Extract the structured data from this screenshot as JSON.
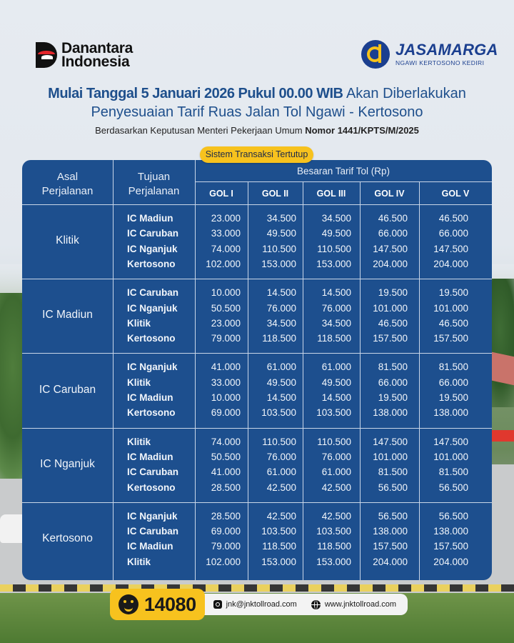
{
  "header": {
    "left_logo": {
      "line1": "Danantara",
      "line2": "Indonesia"
    },
    "right_logo": {
      "name": "JASAMARGA",
      "subtitle": "NGAWI KERTOSONO KEDIRI"
    }
  },
  "headline": {
    "bold": "Mulai Tanggal 5 Januari 2026 Pukul 00.00 WIB",
    "regular": " Akan Diberlakukan",
    "line2": "Penyesuaian Tarif Ruas Jalan Tol Ngawi - Kertosono"
  },
  "subline": {
    "regular": "Berdasarkan Keputusan Menteri Pekerjaan Umum ",
    "bold": "Nomor 1441/KPTS/M/2025"
  },
  "badge": "Sistem Transaksi Tertutup",
  "table": {
    "col_origin": [
      "Asal",
      "Perjalanan"
    ],
    "col_dest": [
      "Tujuan",
      "Perjalanan"
    ],
    "tariff_header": "Besaran Tarif Tol (Rp)",
    "classes": [
      "GOL I",
      "GOL II",
      "GOL III",
      "GOL IV",
      "GOL V"
    ],
    "groups": [
      {
        "origin": "Klitik",
        "rows": [
          {
            "dest": "IC Madiun",
            "values": [
              "23.000",
              "34.500",
              "34.500",
              "46.500",
              "46.500"
            ]
          },
          {
            "dest": "IC Caruban",
            "values": [
              "33.000",
              "49.500",
              "49.500",
              "66.000",
              "66.000"
            ]
          },
          {
            "dest": "IC Nganjuk",
            "values": [
              "74.000",
              "110.500",
              "110.500",
              "147.500",
              "147.500"
            ]
          },
          {
            "dest": "Kertosono",
            "values": [
              "102.000",
              "153.000",
              "153.000",
              "204.000",
              "204.000"
            ]
          }
        ]
      },
      {
        "origin": "IC Madiun",
        "rows": [
          {
            "dest": "IC Caruban",
            "values": [
              "10.000",
              "14.500",
              "14.500",
              "19.500",
              "19.500"
            ]
          },
          {
            "dest": "IC Nganjuk",
            "values": [
              "50.500",
              "76.000",
              "76.000",
              "101.000",
              "101.000"
            ]
          },
          {
            "dest": "Klitik",
            "values": [
              "23.000",
              "34.500",
              "34.500",
              "46.500",
              "46.500"
            ]
          },
          {
            "dest": "Kertosono",
            "values": [
              "79.000",
              "118.500",
              "118.500",
              "157.500",
              "157.500"
            ]
          }
        ]
      },
      {
        "origin": "IC Caruban",
        "rows": [
          {
            "dest": "IC Nganjuk",
            "values": [
              "41.000",
              "61.000",
              "61.000",
              "81.500",
              "81.500"
            ]
          },
          {
            "dest": "Klitik",
            "values": [
              "33.000",
              "49.500",
              "49.500",
              "66.000",
              "66.000"
            ]
          },
          {
            "dest": "IC Madiun",
            "values": [
              "10.000",
              "14.500",
              "14.500",
              "19.500",
              "19.500"
            ]
          },
          {
            "dest": "Kertosono",
            "values": [
              "69.000",
              "103.500",
              "103.500",
              "138.000",
              "138.000"
            ]
          }
        ]
      },
      {
        "origin": "IC Nganjuk",
        "rows": [
          {
            "dest": "Klitik",
            "values": [
              "74.000",
              "110.500",
              "110.500",
              "147.500",
              "147.500"
            ]
          },
          {
            "dest": "IC Madiun",
            "values": [
              "50.500",
              "76.000",
              "76.000",
              "101.000",
              "101.000"
            ]
          },
          {
            "dest": "IC Caruban",
            "values": [
              "41.000",
              "61.000",
              "61.000",
              "81.500",
              "81.500"
            ]
          },
          {
            "dest": "Kertosono",
            "values": [
              "28.500",
              "42.500",
              "42.500",
              "56.500",
              "56.500"
            ]
          }
        ]
      },
      {
        "origin": "Kertosono",
        "rows": [
          {
            "dest": "IC Nganjuk",
            "values": [
              "28.500",
              "42.500",
              "42.500",
              "56.500",
              "56.500"
            ]
          },
          {
            "dest": "IC Caruban",
            "values": [
              "69.000",
              "103.500",
              "103.500",
              "138.000",
              "138.000"
            ]
          },
          {
            "dest": "IC Madiun",
            "values": [
              "79.000",
              "118.500",
              "118.500",
              "157.500",
              "157.500"
            ]
          },
          {
            "dest": "Klitik",
            "values": [
              "102.000",
              "153.000",
              "153.000",
              "204.000",
              "204.000"
            ]
          }
        ]
      }
    ]
  },
  "footer": {
    "hotline_icon": "headset-icon",
    "hotline": "14080",
    "email_icon": "instagram-icon",
    "email": "jnk@jnktollroad.com",
    "web_icon": "globe-icon",
    "website": "www.jnktollroad.com"
  },
  "colors": {
    "table_bg": "#1d4f8e",
    "accent_yellow": "#f7c21e",
    "headline_blue": "#1e4f8c",
    "brand_blue": "#1b3f8f",
    "brand_red": "#e3262b"
  }
}
